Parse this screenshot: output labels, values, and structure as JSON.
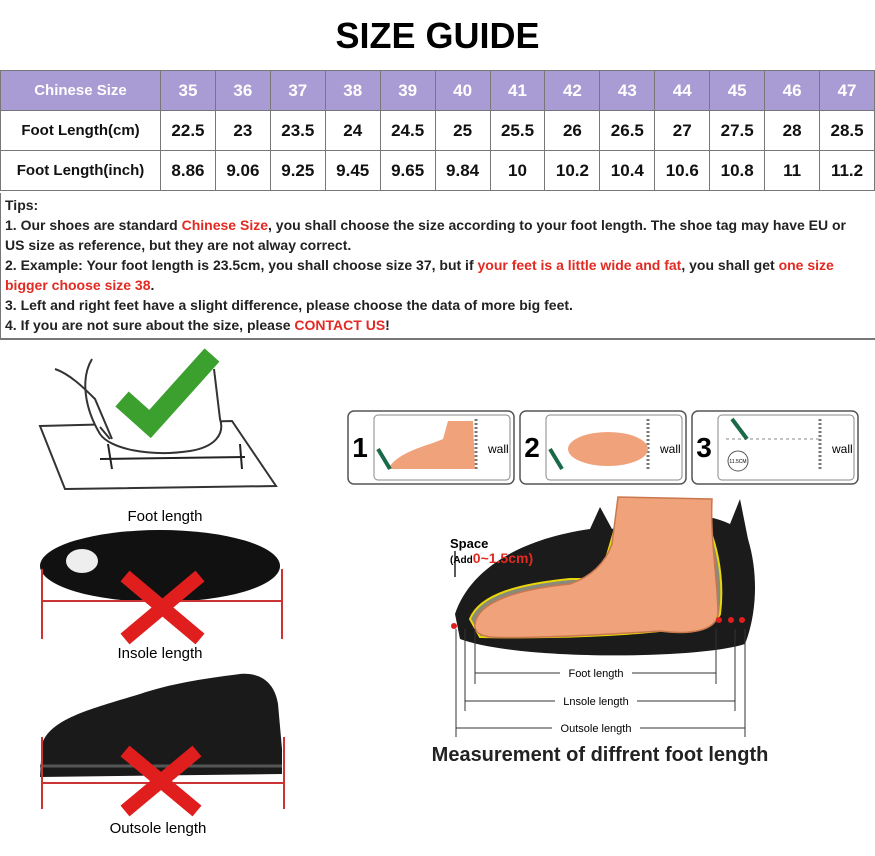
{
  "header": {
    "title": "SIZE GUIDE"
  },
  "table": {
    "header_color": "#a99bd3",
    "rows": [
      [
        "Chinese Size",
        "35",
        "36",
        "37",
        "38",
        "39",
        "40",
        "41",
        "42",
        "43",
        "44",
        "45",
        "46",
        "47"
      ],
      [
        "Foot Length(cm)",
        "22.5",
        "23",
        "23.5",
        "24",
        "24.5",
        "25",
        "25.5",
        "26",
        "26.5",
        "27",
        "27.5",
        "28",
        "28.5"
      ],
      [
        "Foot Length(inch)",
        "8.86",
        "9.06",
        "9.25",
        "9.45",
        "9.65",
        "9.84",
        "10",
        "10.2",
        "10.4",
        "10.6",
        "10.8",
        "11",
        "11.2"
      ]
    ]
  },
  "tips": {
    "heading": "Tips:",
    "highlight_color": "#e32a22",
    "lines": [
      [
        {
          "text": "1. Our shoes are standard "
        },
        {
          "text": "Chinese Size",
          "highlight": true
        },
        {
          "text": ", you shall choose the size according to your foot length. The shoe tag may have EU or US size as reference, but they are not alway correct."
        }
      ],
      [
        {
          "text": "2. Example: Your foot length is 23.5cm, you shall choose size 37, but if "
        },
        {
          "text": "your feet is a little wide and fat",
          "highlight": true
        },
        {
          "text": ", you shall get "
        },
        {
          "text": "one size bigger choose size 38",
          "highlight": true
        },
        {
          "text": "."
        }
      ],
      [
        {
          "text": "3. Left and right feet have a slight difference, please choose the data of more big feet."
        }
      ],
      [
        {
          "text": "4. If you are not sure about the size, please "
        },
        {
          "text": "CONTACT US",
          "highlight": true
        },
        {
          "text": "!"
        }
      ]
    ]
  },
  "illustrations": {
    "left_labels": [
      "Foot length",
      "Insole length",
      "Outsole length"
    ],
    "steps": [
      {
        "number": "1",
        "label": "wall"
      },
      {
        "number": "2",
        "label": "wall"
      },
      {
        "number": "3",
        "label": "wall",
        "note": "11.5CM"
      }
    ],
    "diagram": {
      "space": "Space",
      "add": "(Add",
      "range": "0~1.5cm)",
      "foot_length": "Foot length",
      "insole_length": "Lnsole length",
      "outsole_length": "Outsole length",
      "caption": "Measurement of diffrent foot length"
    }
  }
}
